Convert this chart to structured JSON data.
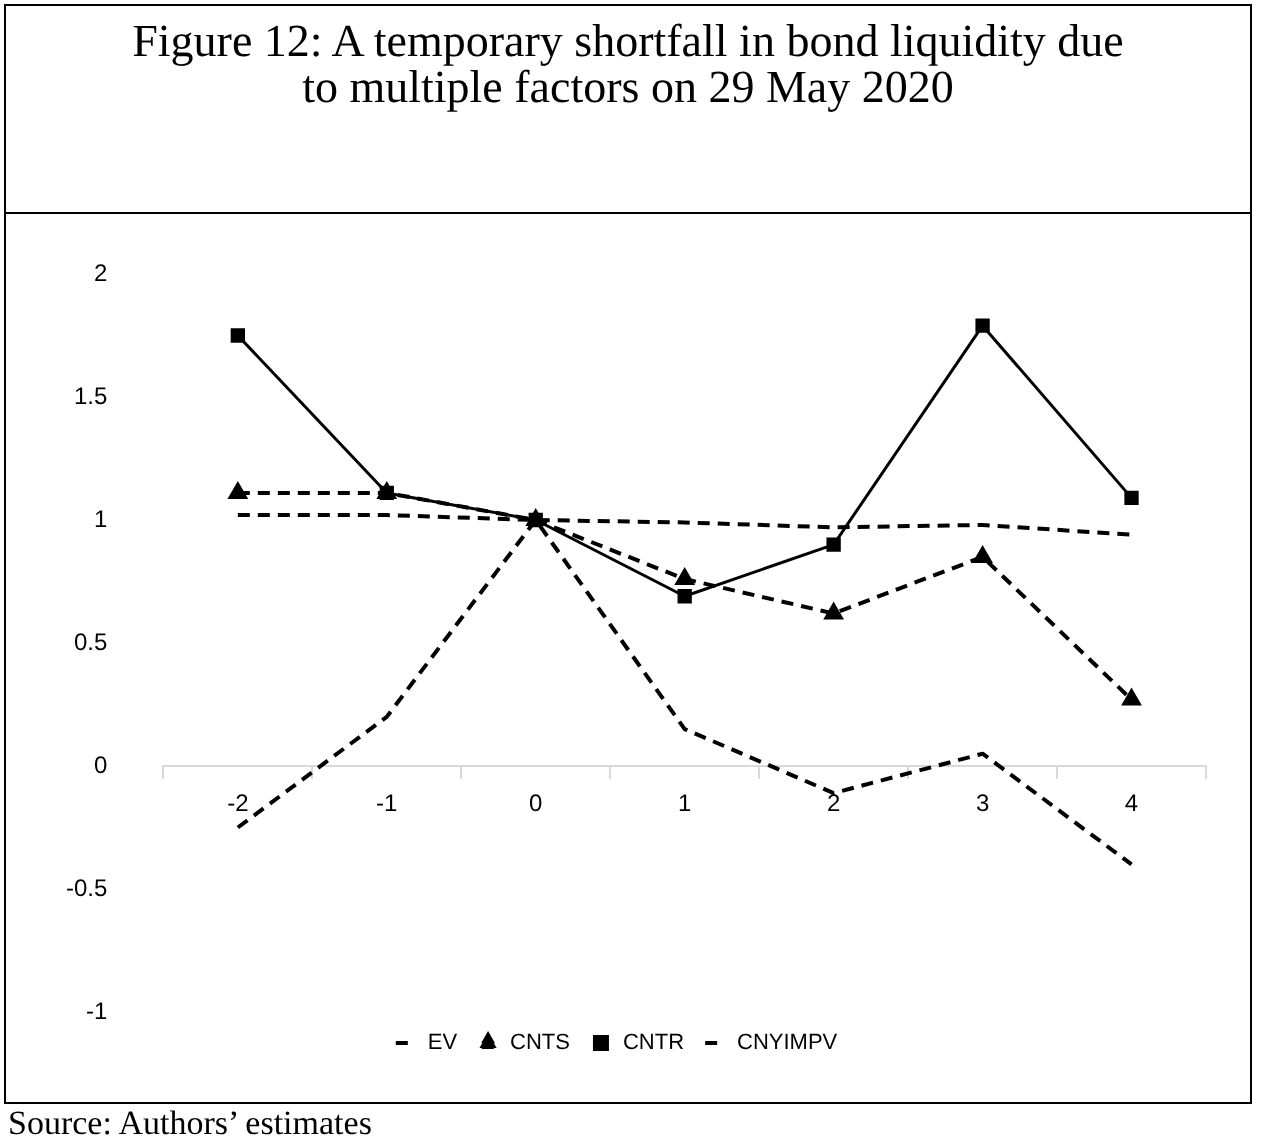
{
  "chart_data": {
    "type": "line",
    "title": "Figure 12: A temporary shortfall in bond liquidity due to multiple factors on 29 May 2020",
    "categories": [
      "-2",
      "-1",
      "0",
      "1",
      "2",
      "3",
      "4"
    ],
    "series": [
      {
        "name": "EV",
        "color": "#000000",
        "line_style": "dashed",
        "marker": "none",
        "values": [
          -0.25,
          0.2,
          1.0,
          0.15,
          -0.11,
          0.05,
          -0.4
        ]
      },
      {
        "name": "CNTS",
        "color": "#000000",
        "line_style": "dashed",
        "marker": "triangle",
        "values": [
          1.11,
          1.11,
          1.0,
          0.76,
          0.62,
          0.85,
          0.27
        ]
      },
      {
        "name": "CNTR",
        "color": "#000000",
        "line_style": "solid",
        "marker": "square",
        "values": [
          1.75,
          1.11,
          1.0,
          0.69,
          0.9,
          1.79,
          1.09
        ]
      },
      {
        "name": "CNYIMPV",
        "color": "#000000",
        "line_style": "dashed",
        "marker": "none",
        "values": [
          1.02,
          1.02,
          1.0,
          0.99,
          0.97,
          0.98,
          0.94
        ]
      }
    ],
    "ylim": [
      -1,
      2
    ],
    "yticks": [
      -1,
      -0.5,
      0,
      0.5,
      1,
      1.5,
      2
    ],
    "grid": false,
    "legend": "bottom",
    "annotations": [
      "Source: Authors’ estimates"
    ]
  }
}
